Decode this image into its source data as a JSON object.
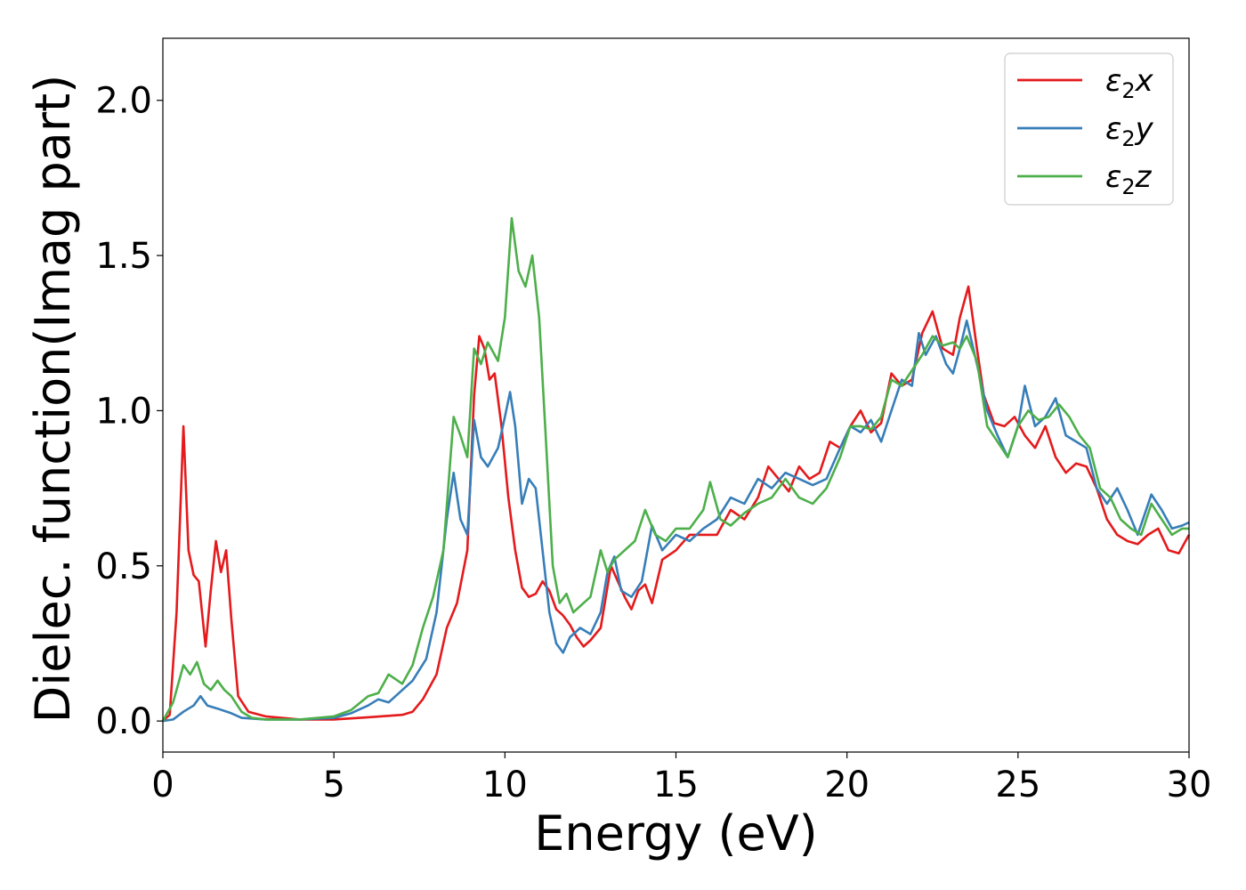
{
  "chart_data": {
    "type": "line",
    "title": "",
    "xlabel": "Energy (eV)",
    "ylabel": "Dielec. function(Imag part)",
    "xlim": [
      0,
      30
    ],
    "ylim": [
      -0.1,
      2.2
    ],
    "x_ticks": [
      0,
      5,
      10,
      15,
      20,
      25,
      30
    ],
    "x_tick_labels": [
      "0",
      "5",
      "10",
      "15",
      "20",
      "25",
      "30"
    ],
    "y_ticks": [
      0.0,
      0.5,
      1.0,
      1.5,
      2.0
    ],
    "y_tick_labels": [
      "0.0",
      "0.5",
      "1.0",
      "1.5",
      "2.0"
    ],
    "grid": false,
    "legend_position": "top-right",
    "series": [
      {
        "name": "ε₂x",
        "legend_base": "ε",
        "legend_sub": "2",
        "legend_tail": "x",
        "color": "#e41a1c",
        "points": [
          [
            0,
            0
          ],
          [
            0.2,
            0.02
          ],
          [
            0.4,
            0.35
          ],
          [
            0.6,
            0.95
          ],
          [
            0.75,
            0.55
          ],
          [
            0.9,
            0.47
          ],
          [
            1.05,
            0.45
          ],
          [
            1.25,
            0.24
          ],
          [
            1.4,
            0.42
          ],
          [
            1.55,
            0.58
          ],
          [
            1.7,
            0.48
          ],
          [
            1.85,
            0.55
          ],
          [
            2.0,
            0.33
          ],
          [
            2.2,
            0.08
          ],
          [
            2.5,
            0.03
          ],
          [
            3.0,
            0.015
          ],
          [
            4.0,
            0.005
          ],
          [
            5.0,
            0.005
          ],
          [
            6.0,
            0.012
          ],
          [
            7.0,
            0.02
          ],
          [
            7.3,
            0.03
          ],
          [
            7.6,
            0.07
          ],
          [
            8.0,
            0.15
          ],
          [
            8.3,
            0.3
          ],
          [
            8.6,
            0.38
          ],
          [
            8.9,
            0.55
          ],
          [
            9.1,
            1.05
          ],
          [
            9.25,
            1.24
          ],
          [
            9.4,
            1.2
          ],
          [
            9.55,
            1.1
          ],
          [
            9.7,
            1.12
          ],
          [
            9.9,
            0.95
          ],
          [
            10.1,
            0.72
          ],
          [
            10.3,
            0.55
          ],
          [
            10.5,
            0.43
          ],
          [
            10.7,
            0.4
          ],
          [
            10.9,
            0.41
          ],
          [
            11.1,
            0.45
          ],
          [
            11.3,
            0.42
          ],
          [
            11.5,
            0.36
          ],
          [
            11.7,
            0.34
          ],
          [
            11.9,
            0.31
          ],
          [
            12.1,
            0.27
          ],
          [
            12.3,
            0.24
          ],
          [
            12.5,
            0.26
          ],
          [
            12.8,
            0.3
          ],
          [
            13.1,
            0.5
          ],
          [
            13.3,
            0.45
          ],
          [
            13.5,
            0.4
          ],
          [
            13.7,
            0.36
          ],
          [
            13.9,
            0.42
          ],
          [
            14.1,
            0.44
          ],
          [
            14.3,
            0.38
          ],
          [
            14.6,
            0.52
          ],
          [
            15.0,
            0.55
          ],
          [
            15.4,
            0.6
          ],
          [
            15.8,
            0.6
          ],
          [
            16.2,
            0.6
          ],
          [
            16.6,
            0.68
          ],
          [
            17.0,
            0.65
          ],
          [
            17.4,
            0.72
          ],
          [
            17.7,
            0.82
          ],
          [
            18.0,
            0.78
          ],
          [
            18.3,
            0.74
          ],
          [
            18.6,
            0.82
          ],
          [
            18.9,
            0.78
          ],
          [
            19.2,
            0.8
          ],
          [
            19.5,
            0.9
          ],
          [
            19.8,
            0.88
          ],
          [
            20.1,
            0.95
          ],
          [
            20.4,
            1.0
          ],
          [
            20.7,
            0.93
          ],
          [
            21.0,
            0.96
          ],
          [
            21.3,
            1.12
          ],
          [
            21.6,
            1.08
          ],
          [
            21.9,
            1.1
          ],
          [
            22.2,
            1.25
          ],
          [
            22.5,
            1.32
          ],
          [
            22.8,
            1.2
          ],
          [
            23.1,
            1.18
          ],
          [
            23.3,
            1.3
          ],
          [
            23.55,
            1.4
          ],
          [
            23.8,
            1.2
          ],
          [
            24.0,
            1.05
          ],
          [
            24.3,
            0.96
          ],
          [
            24.6,
            0.95
          ],
          [
            24.9,
            0.98
          ],
          [
            25.2,
            0.92
          ],
          [
            25.5,
            0.88
          ],
          [
            25.8,
            0.95
          ],
          [
            26.1,
            0.85
          ],
          [
            26.4,
            0.8
          ],
          [
            26.7,
            0.83
          ],
          [
            27.0,
            0.82
          ],
          [
            27.3,
            0.75
          ],
          [
            27.6,
            0.65
          ],
          [
            27.9,
            0.6
          ],
          [
            28.2,
            0.58
          ],
          [
            28.5,
            0.57
          ],
          [
            28.8,
            0.6
          ],
          [
            29.1,
            0.62
          ],
          [
            29.4,
            0.55
          ],
          [
            29.7,
            0.54
          ],
          [
            30.0,
            0.6
          ]
        ]
      },
      {
        "name": "ε₂y",
        "legend_base": "ε",
        "legend_sub": "2",
        "legend_tail": "y",
        "color": "#377eb8",
        "points": [
          [
            0,
            0
          ],
          [
            0.3,
            0.005
          ],
          [
            0.6,
            0.03
          ],
          [
            0.9,
            0.05
          ],
          [
            1.1,
            0.08
          ],
          [
            1.3,
            0.05
          ],
          [
            1.6,
            0.04
          ],
          [
            2.0,
            0.025
          ],
          [
            2.3,
            0.01
          ],
          [
            3.0,
            0.005
          ],
          [
            4.0,
            0.005
          ],
          [
            5.0,
            0.01
          ],
          [
            5.5,
            0.025
          ],
          [
            6.0,
            0.05
          ],
          [
            6.3,
            0.07
          ],
          [
            6.6,
            0.06
          ],
          [
            7.0,
            0.1
          ],
          [
            7.3,
            0.13
          ],
          [
            7.7,
            0.2
          ],
          [
            8.0,
            0.35
          ],
          [
            8.3,
            0.65
          ],
          [
            8.5,
            0.8
          ],
          [
            8.7,
            0.65
          ],
          [
            8.9,
            0.6
          ],
          [
            9.1,
            0.97
          ],
          [
            9.3,
            0.85
          ],
          [
            9.5,
            0.82
          ],
          [
            9.8,
            0.88
          ],
          [
            10.0,
            0.98
          ],
          [
            10.15,
            1.06
          ],
          [
            10.3,
            0.95
          ],
          [
            10.5,
            0.7
          ],
          [
            10.7,
            0.78
          ],
          [
            10.9,
            0.75
          ],
          [
            11.1,
            0.55
          ],
          [
            11.3,
            0.35
          ],
          [
            11.5,
            0.25
          ],
          [
            11.7,
            0.22
          ],
          [
            11.9,
            0.27
          ],
          [
            12.2,
            0.3
          ],
          [
            12.5,
            0.28
          ],
          [
            12.8,
            0.35
          ],
          [
            13.0,
            0.48
          ],
          [
            13.2,
            0.53
          ],
          [
            13.4,
            0.42
          ],
          [
            13.7,
            0.4
          ],
          [
            14.0,
            0.45
          ],
          [
            14.3,
            0.63
          ],
          [
            14.6,
            0.55
          ],
          [
            15.0,
            0.6
          ],
          [
            15.4,
            0.58
          ],
          [
            15.8,
            0.62
          ],
          [
            16.2,
            0.65
          ],
          [
            16.6,
            0.72
          ],
          [
            17.0,
            0.7
          ],
          [
            17.4,
            0.78
          ],
          [
            17.8,
            0.75
          ],
          [
            18.2,
            0.8
          ],
          [
            18.6,
            0.78
          ],
          [
            19.0,
            0.76
          ],
          [
            19.4,
            0.78
          ],
          [
            19.8,
            0.88
          ],
          [
            20.1,
            0.95
          ],
          [
            20.4,
            0.93
          ],
          [
            20.7,
            0.97
          ],
          [
            21.0,
            0.9
          ],
          [
            21.3,
            1.0
          ],
          [
            21.6,
            1.1
          ],
          [
            21.9,
            1.08
          ],
          [
            22.1,
            1.25
          ],
          [
            22.3,
            1.18
          ],
          [
            22.6,
            1.24
          ],
          [
            22.9,
            1.15
          ],
          [
            23.1,
            1.12
          ],
          [
            23.3,
            1.2
          ],
          [
            23.5,
            1.29
          ],
          [
            23.8,
            1.15
          ],
          [
            24.1,
            1.0
          ],
          [
            24.4,
            0.92
          ],
          [
            24.7,
            0.85
          ],
          [
            25.0,
            0.95
          ],
          [
            25.2,
            1.08
          ],
          [
            25.5,
            0.95
          ],
          [
            25.8,
            0.98
          ],
          [
            26.1,
            1.04
          ],
          [
            26.4,
            0.92
          ],
          [
            26.7,
            0.9
          ],
          [
            27.0,
            0.88
          ],
          [
            27.3,
            0.75
          ],
          [
            27.6,
            0.7
          ],
          [
            27.9,
            0.75
          ],
          [
            28.2,
            0.68
          ],
          [
            28.5,
            0.6
          ],
          [
            28.9,
            0.73
          ],
          [
            29.2,
            0.68
          ],
          [
            29.5,
            0.62
          ],
          [
            29.8,
            0.63
          ],
          [
            30.0,
            0.64
          ]
        ]
      },
      {
        "name": "ε₂z",
        "legend_base": "ε",
        "legend_sub": "2",
        "legend_tail": "z",
        "color": "#4daf4a",
        "points": [
          [
            0,
            0
          ],
          [
            0.3,
            0.06
          ],
          [
            0.6,
            0.18
          ],
          [
            0.8,
            0.15
          ],
          [
            1.0,
            0.19
          ],
          [
            1.2,
            0.12
          ],
          [
            1.4,
            0.1
          ],
          [
            1.6,
            0.13
          ],
          [
            1.8,
            0.1
          ],
          [
            2.0,
            0.08
          ],
          [
            2.3,
            0.03
          ],
          [
            2.6,
            0.01
          ],
          [
            3.0,
            0.005
          ],
          [
            4.0,
            0.005
          ],
          [
            5.0,
            0.015
          ],
          [
            5.5,
            0.035
          ],
          [
            6.0,
            0.08
          ],
          [
            6.3,
            0.09
          ],
          [
            6.6,
            0.15
          ],
          [
            7.0,
            0.12
          ],
          [
            7.3,
            0.18
          ],
          [
            7.6,
            0.3
          ],
          [
            7.9,
            0.4
          ],
          [
            8.2,
            0.55
          ],
          [
            8.5,
            0.98
          ],
          [
            8.7,
            0.92
          ],
          [
            8.9,
            0.85
          ],
          [
            9.1,
            1.2
          ],
          [
            9.3,
            1.15
          ],
          [
            9.5,
            1.22
          ],
          [
            9.8,
            1.16
          ],
          [
            10.0,
            1.3
          ],
          [
            10.2,
            1.62
          ],
          [
            10.4,
            1.45
          ],
          [
            10.6,
            1.4
          ],
          [
            10.8,
            1.5
          ],
          [
            11.0,
            1.3
          ],
          [
            11.2,
            0.9
          ],
          [
            11.4,
            0.5
          ],
          [
            11.6,
            0.38
          ],
          [
            11.8,
            0.41
          ],
          [
            12.0,
            0.35
          ],
          [
            12.3,
            0.38
          ],
          [
            12.5,
            0.4
          ],
          [
            12.8,
            0.55
          ],
          [
            13.0,
            0.48
          ],
          [
            13.2,
            0.52
          ],
          [
            13.5,
            0.55
          ],
          [
            13.8,
            0.58
          ],
          [
            14.1,
            0.68
          ],
          [
            14.4,
            0.6
          ],
          [
            14.7,
            0.58
          ],
          [
            15.0,
            0.62
          ],
          [
            15.4,
            0.62
          ],
          [
            15.8,
            0.68
          ],
          [
            16.0,
            0.77
          ],
          [
            16.3,
            0.65
          ],
          [
            16.6,
            0.63
          ],
          [
            17.0,
            0.67
          ],
          [
            17.4,
            0.7
          ],
          [
            17.8,
            0.72
          ],
          [
            18.2,
            0.78
          ],
          [
            18.6,
            0.72
          ],
          [
            19.0,
            0.7
          ],
          [
            19.4,
            0.75
          ],
          [
            19.8,
            0.85
          ],
          [
            20.1,
            0.95
          ],
          [
            20.4,
            0.95
          ],
          [
            20.7,
            0.94
          ],
          [
            21.0,
            0.98
          ],
          [
            21.3,
            1.1
          ],
          [
            21.6,
            1.08
          ],
          [
            21.9,
            1.13
          ],
          [
            22.2,
            1.18
          ],
          [
            22.5,
            1.24
          ],
          [
            22.8,
            1.21
          ],
          [
            23.1,
            1.22
          ],
          [
            23.3,
            1.2
          ],
          [
            23.5,
            1.24
          ],
          [
            23.8,
            1.16
          ],
          [
            24.1,
            0.95
          ],
          [
            24.4,
            0.9
          ],
          [
            24.7,
            0.85
          ],
          [
            25.0,
            0.95
          ],
          [
            25.3,
            1.0
          ],
          [
            25.6,
            0.97
          ],
          [
            25.9,
            0.98
          ],
          [
            26.2,
            1.02
          ],
          [
            26.5,
            0.98
          ],
          [
            26.8,
            0.92
          ],
          [
            27.1,
            0.88
          ],
          [
            27.4,
            0.75
          ],
          [
            27.7,
            0.72
          ],
          [
            28.0,
            0.65
          ],
          [
            28.3,
            0.62
          ],
          [
            28.6,
            0.6
          ],
          [
            28.9,
            0.7
          ],
          [
            29.2,
            0.65
          ],
          [
            29.5,
            0.6
          ],
          [
            29.8,
            0.62
          ],
          [
            30.0,
            0.62
          ]
        ]
      }
    ]
  }
}
